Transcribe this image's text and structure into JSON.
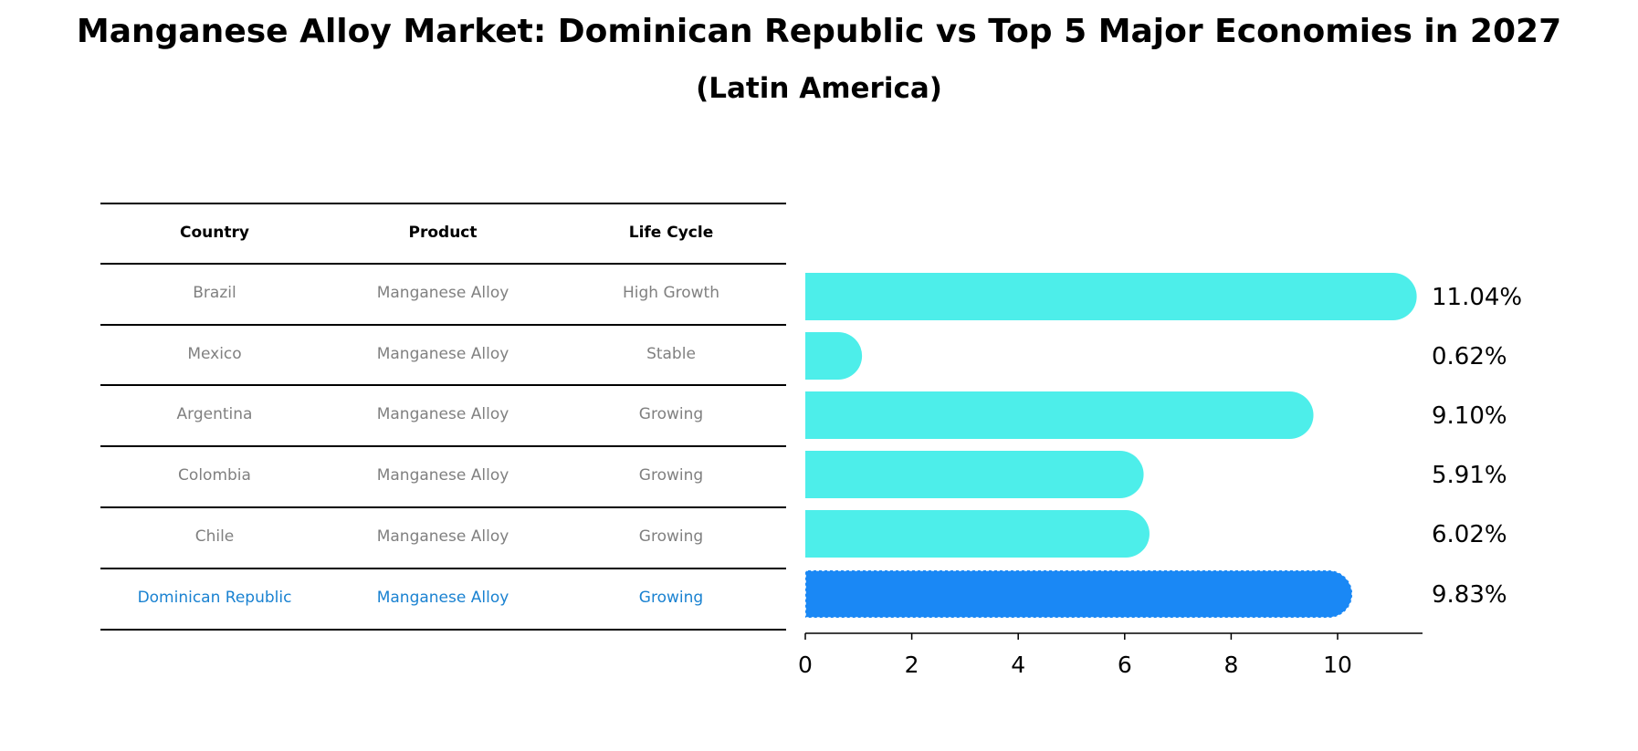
{
  "title": "Manganese Alloy Market: Dominican Republic vs Top 5 Major Economies in 2027",
  "subtitle": "(Latin America)",
  "table": {
    "headers": [
      "Country",
      "Product",
      "Life Cycle"
    ],
    "rows": [
      [
        "Brazil",
        "Manganese Alloy",
        "High Growth"
      ],
      [
        "Mexico",
        "Manganese Alloy",
        "Stable"
      ],
      [
        "Argentina",
        "Manganese Alloy",
        "Growing"
      ],
      [
        "Colombia",
        "Manganese Alloy",
        "Growing"
      ],
      [
        "Chile",
        "Manganese Alloy",
        "Growing"
      ],
      [
        "Dominican Republic",
        "Manganese Alloy",
        "Growing"
      ]
    ],
    "highlight_row": 5
  },
  "chart_data": {
    "type": "bar",
    "orientation": "horizontal",
    "categories": [
      "Brazil",
      "Mexico",
      "Argentina",
      "Colombia",
      "Chile",
      "Dominican Republic"
    ],
    "values": [
      11.04,
      0.62,
      9.1,
      5.91,
      6.02,
      9.83
    ],
    "value_labels": [
      "11.04%",
      "0.62%",
      "9.10%",
      "5.91%",
      "6.02%",
      "9.83%"
    ],
    "xlim": [
      0,
      11.6
    ],
    "xticks": [
      0,
      2,
      4,
      6,
      8,
      10
    ],
    "colors": {
      "default": "#4deeea",
      "highlight": "#1a88f5"
    },
    "highlight_index": 5
  }
}
